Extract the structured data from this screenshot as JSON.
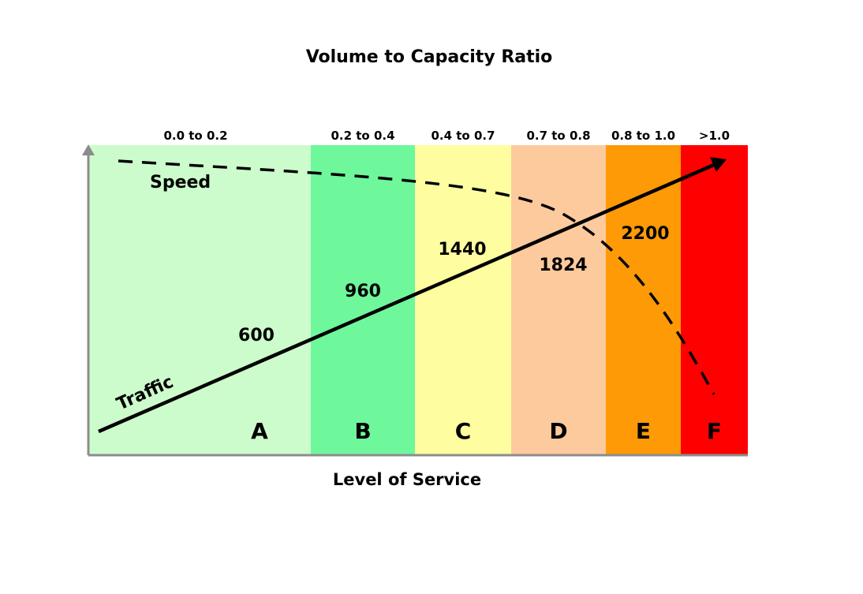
{
  "title": "Volume to Capacity Ratio",
  "xlabel": "Level of Service",
  "labels": {
    "speed": "Speed",
    "traffic": "Traffic"
  },
  "bands": [
    {
      "letter": "A",
      "range": "0.0 to 0.2",
      "color": "#ccfccc"
    },
    {
      "letter": "B",
      "range": "0.2 to 0.4",
      "color": "#6ff79b"
    },
    {
      "letter": "C",
      "range": "0.4 to 0.7",
      "color": "#fefea1"
    },
    {
      "letter": "D",
      "range": "0.7 to 0.8",
      "color": "#fdca9d"
    },
    {
      "letter": "E",
      "range": "0.8 to 1.0",
      "color": "#fe9a06"
    },
    {
      "letter": "F",
      "range": ">1.0",
      "color": "#fe0000"
    }
  ],
  "traffic_values": [
    {
      "label": "600",
      "band": "A"
    },
    {
      "label": "960",
      "band": "B"
    },
    {
      "label": "1440",
      "band": "C"
    },
    {
      "label": "1824",
      "band": "D"
    },
    {
      "label": "2200",
      "band": "E"
    }
  ],
  "axis_color": "#8c8c8c"
}
